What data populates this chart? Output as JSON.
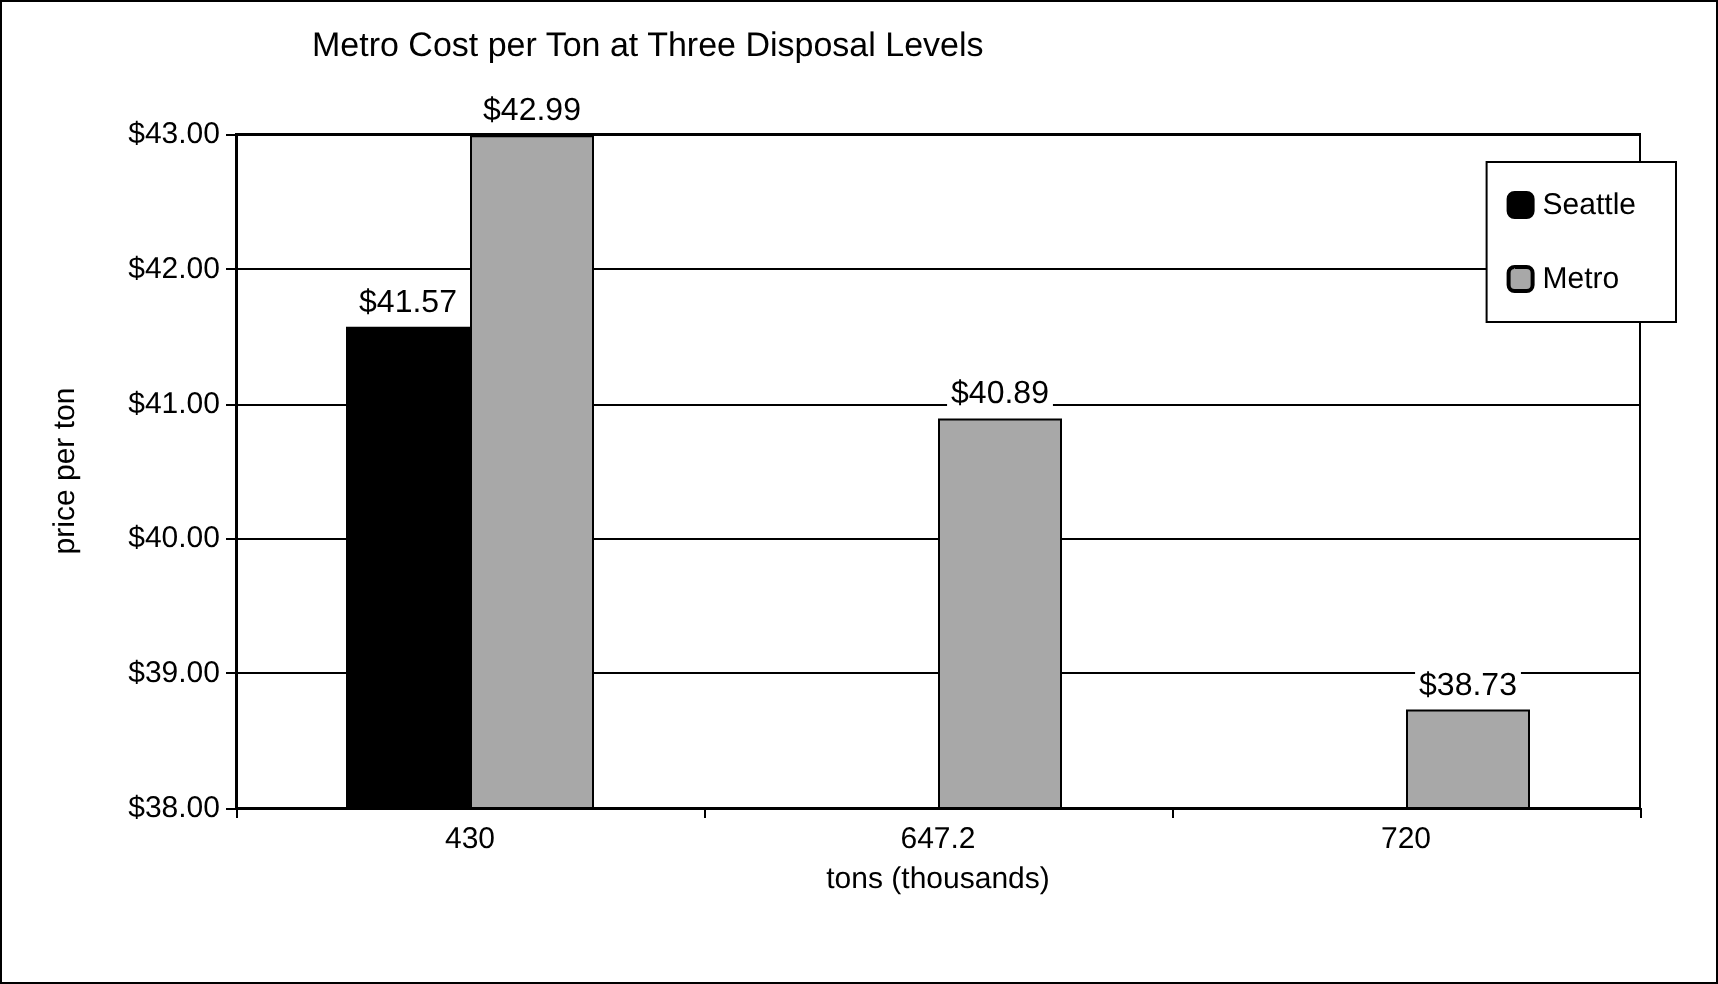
{
  "chart_data": {
    "type": "bar",
    "title": "Metro Cost per Ton at Three Disposal Levels",
    "xlabel": "tons (thousands)",
    "ylabel": "price per ton",
    "categories": [
      "430",
      "647.2",
      "720"
    ],
    "series": [
      {
        "name": "Seattle",
        "color": "#000000",
        "values": [
          41.57,
          null,
          null
        ],
        "value_labels": [
          "$41.57",
          null,
          null
        ]
      },
      {
        "name": "Metro",
        "color": "#a8a8a8",
        "values": [
          42.99,
          40.89,
          38.73
        ],
        "value_labels": [
          "$42.99",
          "$40.89",
          "$38.73"
        ]
      }
    ],
    "ylim": [
      38,
      43
    ],
    "yticks": [
      {
        "value": 38,
        "label": "$38.00"
      },
      {
        "value": 39,
        "label": "$39.00"
      },
      {
        "value": 40,
        "label": "$40.00"
      },
      {
        "value": 41,
        "label": "$41.00"
      },
      {
        "value": 42,
        "label": "$42.00"
      },
      {
        "value": 43,
        "label": "$43.00"
      }
    ],
    "grid": "y",
    "legend": "top right"
  }
}
